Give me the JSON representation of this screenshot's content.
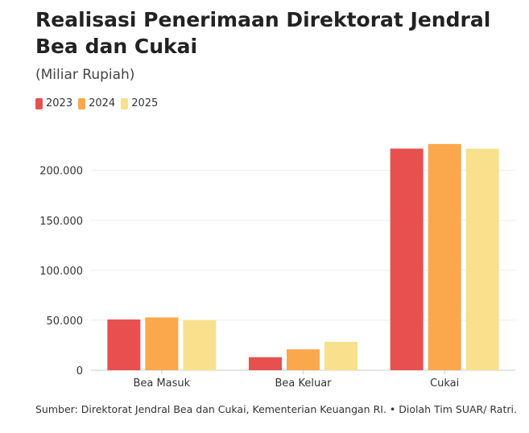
{
  "chart_data": {
    "type": "bar",
    "title": "Realisasi Penerimaan Direktorat Jendral Bea dan Cukai",
    "subtitle": "(Miliar Rupiah)",
    "categories": [
      "Bea Masuk",
      "Bea Keluar",
      "Cukai"
    ],
    "series": [
      {
        "name": "2023",
        "color": "#e8504f",
        "values": [
          50800,
          13000,
          221800
        ]
      },
      {
        "name": "2024",
        "color": "#fba84d",
        "values": [
          52800,
          20900,
          226400
        ]
      },
      {
        "name": "2025",
        "color": "#f8e08c",
        "values": [
          50200,
          28300,
          221700
        ]
      }
    ],
    "yticks": [
      0,
      50000,
      100000,
      150000,
      200000
    ],
    "ytick_labels": [
      "0",
      "50.000",
      "100.000",
      "150.000",
      "200.000"
    ],
    "ylim": [
      0,
      240000
    ],
    "xlabel": "",
    "ylabel": "",
    "grid": true,
    "legend": "top-left",
    "source": "Sumber: Direktorat Jendral Bea dan Cukai, Kementerian Keuangan RI. • Diolah Tim SUAR/ Ratri."
  }
}
